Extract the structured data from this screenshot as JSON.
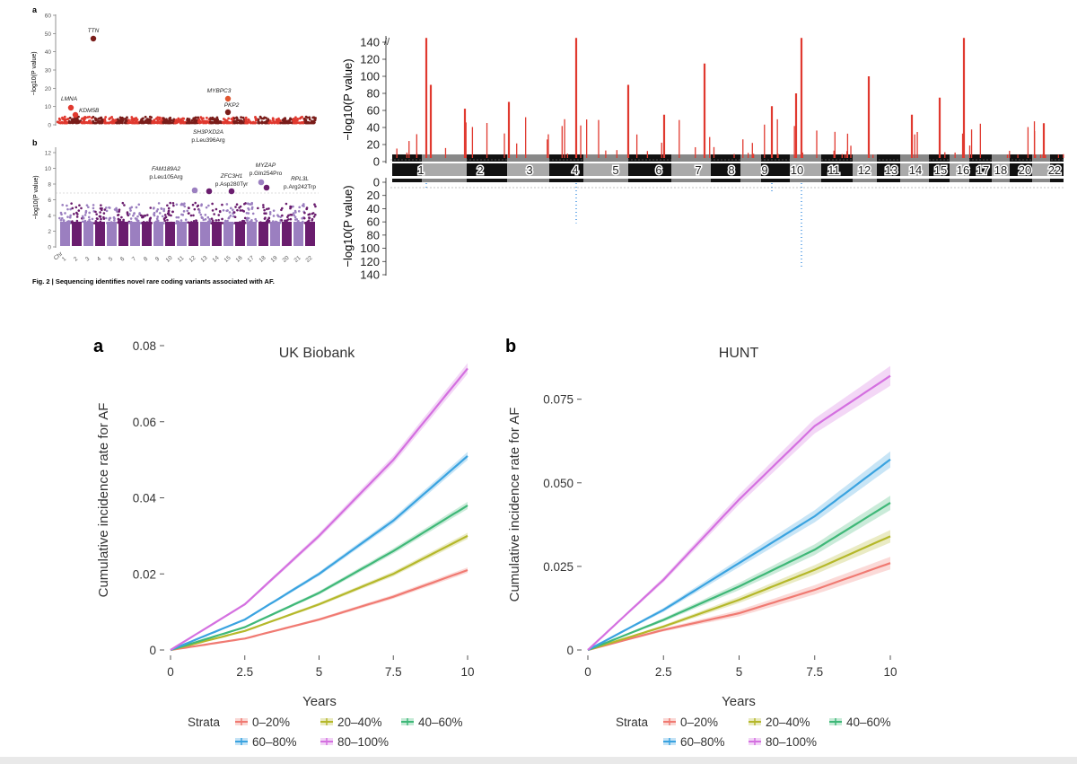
{
  "figure_caption": "Fig. 2 | Sequencing identifies novel rare coding variants associated with AF.",
  "colors": {
    "red": "#e0392f",
    "dark_red": "#7a1d1a",
    "orange": "#e0552f",
    "purple_light": "#9b7fc0",
    "purple_dark": "#6a1d6e",
    "blue": "#3a8fe0",
    "strata": [
      "#f07a72",
      "#b5b82a",
      "#3fb878",
      "#3aa3e0",
      "#d470e0"
    ]
  },
  "chart_data": [
    {
      "id": "manhattan-a",
      "type": "scatter",
      "panel_label": "a",
      "ylabel": "−log10(P value)",
      "ylim": [
        0,
        60
      ],
      "yticks": [
        "0",
        "10",
        "20",
        "30",
        "40",
        "50",
        "60"
      ],
      "hits": [
        {
          "gene": "TTN",
          "chr": 2,
          "y": 47
        },
        {
          "gene": "LMNA",
          "chr": 1,
          "y": 10
        },
        {
          "gene": "KDM5B",
          "chr": 1,
          "y": 5
        },
        {
          "gene": "MYBPC3",
          "chr": 11,
          "y": 15
        },
        {
          "gene": "PKP2",
          "chr": 12,
          "y": 7
        }
      ]
    },
    {
      "id": "manhattan-b",
      "type": "scatter",
      "panel_label": "b",
      "ylabel": "−log10(P value)",
      "ylim": [
        0,
        12
      ],
      "yticks": [
        "0",
        "2",
        "4",
        "6",
        "8",
        "10",
        "12"
      ],
      "xtick_prefix": "Chr",
      "xticks": [
        "1",
        "2",
        "3",
        "4",
        "5",
        "6",
        "7",
        "8",
        "9",
        "10",
        "11",
        "12",
        "13",
        "14",
        "15",
        "16",
        "17",
        "18",
        "19",
        "20",
        "21",
        "22"
      ],
      "hits": [
        {
          "gene": "FAM189A2",
          "variant": "p.Leu105Arg",
          "chr": 9,
          "y": 7.3
        },
        {
          "gene": "SH3PXD2A",
          "variant": "p.Leu396Arg",
          "chr": 10,
          "y": 7.0
        },
        {
          "gene": "ZFC3H1",
          "variant": "p.Asp280Tyr",
          "chr": 12,
          "y": 7.1
        },
        {
          "gene": "MYZAP",
          "variant": "p.Gln254Pro",
          "chr": 15,
          "y": 8.1
        },
        {
          "gene": "RPL3L",
          "variant": "p.Arg242Trp",
          "chr": 16,
          "y": 7.6
        }
      ]
    },
    {
      "id": "miami-plot",
      "type": "scatter",
      "ylabel_top": "−log10(P value)",
      "ylabel_bottom": "−log10(P value)",
      "yticks_top": [
        "0",
        "20",
        "40",
        "60",
        "80",
        "100",
        "120",
        "140"
      ],
      "yticks_bottom": [
        "0",
        "20",
        "40",
        "60",
        "80",
        "100",
        "120",
        "140"
      ],
      "xticks": [
        "1",
        "2",
        "3",
        "4",
        "5",
        "6",
        "7",
        "8",
        "9",
        "10",
        "11",
        "12",
        "13",
        "14",
        "15",
        "16",
        "17",
        "18",
        "20",
        "22"
      ],
      "peaks_top": [
        {
          "chr": 1,
          "y": 145
        },
        {
          "chr": 1,
          "y": 90
        },
        {
          "chr": 2,
          "y": 62
        },
        {
          "chr": 3,
          "y": 70
        },
        {
          "chr": 4,
          "y": 145
        },
        {
          "chr": 5,
          "y": 90
        },
        {
          "chr": 6,
          "y": 55
        },
        {
          "chr": 7,
          "y": 115
        },
        {
          "chr": 9,
          "y": 65
        },
        {
          "chr": 10,
          "y": 145
        },
        {
          "chr": 10,
          "y": 80
        },
        {
          "chr": 12,
          "y": 100
        },
        {
          "chr": 14,
          "y": 55
        },
        {
          "chr": 15,
          "y": 75
        },
        {
          "chr": 16,
          "y": 145
        },
        {
          "chr": 22,
          "y": 45
        }
      ],
      "peaks_bottom": [
        {
          "chr": 4,
          "y": 62
        },
        {
          "chr": 10,
          "y": 130
        },
        {
          "chr": 1,
          "y": 10
        },
        {
          "chr": 9,
          "y": 15
        }
      ]
    },
    {
      "id": "km-ukb",
      "type": "line",
      "panel_label": "a",
      "title": "UK Biobank",
      "xlabel": "Years",
      "ylabel": "Cumulative incidence rate for AF",
      "xlim": [
        0,
        10
      ],
      "ylim": [
        0,
        0.08
      ],
      "xticks": [
        0,
        2.5,
        5,
        7.5,
        10
      ],
      "xtick_labels": [
        "0",
        "2.5",
        "5",
        "7.5",
        "10"
      ],
      "yticks": [
        0,
        0.02,
        0.04,
        0.06,
        0.08
      ],
      "ytick_labels": [
        "0",
        "0.02",
        "0.04",
        "0.06",
        "0.08"
      ],
      "series": [
        {
          "name": "0–20%",
          "x": [
            0,
            2.5,
            5,
            7.5,
            10
          ],
          "values": [
            0,
            0.003,
            0.008,
            0.014,
            0.021
          ]
        },
        {
          "name": "20–40%",
          "x": [
            0,
            2.5,
            5,
            7.5,
            10
          ],
          "values": [
            0,
            0.005,
            0.012,
            0.02,
            0.03
          ]
        },
        {
          "name": "40–60%",
          "x": [
            0,
            2.5,
            5,
            7.5,
            10
          ],
          "values": [
            0,
            0.006,
            0.015,
            0.026,
            0.038
          ]
        },
        {
          "name": "60–80%",
          "x": [
            0,
            2.5,
            5,
            7.5,
            10
          ],
          "values": [
            0,
            0.008,
            0.02,
            0.034,
            0.051
          ]
        },
        {
          "name": "80–100%",
          "x": [
            0,
            2.5,
            5,
            7.5,
            10
          ],
          "values": [
            0,
            0.012,
            0.03,
            0.05,
            0.074
          ]
        }
      ]
    },
    {
      "id": "km-hunt",
      "type": "line",
      "panel_label": "b",
      "title": "HUNT",
      "xlabel": "Years",
      "ylabel": "Cumulative incidence rate for AF",
      "xlim": [
        0,
        10
      ],
      "ylim": [
        0,
        0.087
      ],
      "xticks": [
        0,
        2.5,
        5,
        7.5,
        10
      ],
      "xtick_labels": [
        "0",
        "2.5",
        "5",
        "7.5",
        "10"
      ],
      "yticks": [
        0,
        0.025,
        0.05,
        0.075
      ],
      "ytick_labels": [
        "0",
        "0.025",
        "0.050",
        "0.075"
      ],
      "series": [
        {
          "name": "0–20%",
          "x": [
            0,
            2.5,
            5,
            7.5,
            10
          ],
          "values": [
            0,
            0.006,
            0.011,
            0.018,
            0.026
          ]
        },
        {
          "name": "20–40%",
          "x": [
            0,
            2.5,
            5,
            7.5,
            10
          ],
          "values": [
            0,
            0.007,
            0.015,
            0.024,
            0.034
          ]
        },
        {
          "name": "40–60%",
          "x": [
            0,
            2.5,
            5,
            7.5,
            10
          ],
          "values": [
            0,
            0.009,
            0.019,
            0.03,
            0.044
          ]
        },
        {
          "name": "60–80%",
          "x": [
            0,
            2.5,
            5,
            7.5,
            10
          ],
          "values": [
            0,
            0.012,
            0.026,
            0.04,
            0.057
          ]
        },
        {
          "name": "80–100%",
          "x": [
            0,
            2.5,
            5,
            7.5,
            10
          ],
          "values": [
            0,
            0.021,
            0.045,
            0.067,
            0.082
          ]
        }
      ]
    }
  ],
  "legend": {
    "title": "Strata",
    "items": [
      "0–20%",
      "20–40%",
      "40–60%",
      "60–80%",
      "80–100%"
    ]
  }
}
